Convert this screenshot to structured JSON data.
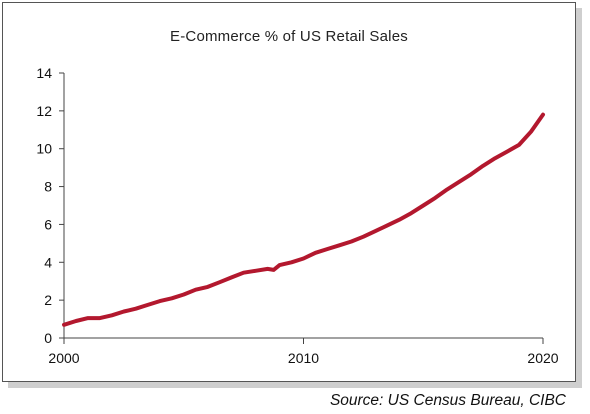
{
  "chart_data": {
    "type": "line",
    "title": "E-Commerce % of US Retail Sales",
    "xlabel": "",
    "ylabel": "",
    "xlim": [
      2000,
      2020
    ],
    "ylim": [
      0,
      14
    ],
    "xticks": [
      "2000",
      "2010",
      "2020"
    ],
    "yticks": [
      "0",
      "2",
      "4",
      "6",
      "8",
      "10",
      "12",
      "14"
    ],
    "grid": false,
    "legend": "none",
    "series": [
      {
        "color": "#b3182e",
        "x": [
          2000.0,
          2000.5,
          2001.0,
          2001.5,
          2002.0,
          2002.5,
          2003.0,
          2003.5,
          2004.0,
          2004.5,
          2005.0,
          2005.5,
          2006.0,
          2006.5,
          2007.0,
          2007.5,
          2008.0,
          2008.5,
          2008.75,
          2009.0,
          2009.5,
          2010.0,
          2010.5,
          2011.0,
          2011.5,
          2012.0,
          2012.5,
          2013.0,
          2013.5,
          2014.0,
          2014.5,
          2015.0,
          2015.5,
          2016.0,
          2016.5,
          2017.0,
          2017.5,
          2018.0,
          2018.5,
          2019.0,
          2019.5,
          2020.0
        ],
        "values": [
          0.7,
          0.9,
          1.05,
          1.05,
          1.2,
          1.4,
          1.55,
          1.75,
          1.95,
          2.1,
          2.3,
          2.55,
          2.7,
          2.95,
          3.2,
          3.45,
          3.55,
          3.65,
          3.6,
          3.85,
          4.0,
          4.2,
          4.5,
          4.7,
          4.9,
          5.1,
          5.35,
          5.65,
          5.95,
          6.25,
          6.6,
          7.0,
          7.4,
          7.85,
          8.25,
          8.65,
          9.1,
          9.5,
          9.85,
          10.2,
          10.9,
          11.8
        ]
      }
    ]
  },
  "source": "Source: US Census Bureau, CIBC"
}
